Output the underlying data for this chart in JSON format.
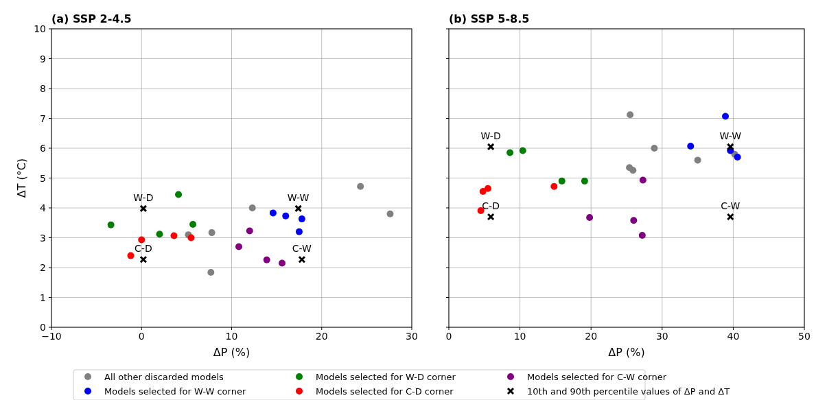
{
  "chart_data": [
    {
      "type": "scatter",
      "title": "(a) SSP 2-4.5",
      "xlabel": "ΔP (%)",
      "ylabel": "ΔT (°C)",
      "xlim": [
        -10,
        30
      ],
      "xticks": [
        {
          "value": -10,
          "label": "−10"
        },
        0,
        10,
        20,
        30
      ],
      "ylim": [
        0,
        10
      ],
      "yticks": [
        0,
        1,
        2,
        3,
        4,
        5,
        6,
        7,
        8,
        9,
        10
      ],
      "grid": true,
      "legend": "bottom",
      "marker": "circle",
      "series": [
        {
          "name": "All other discarded models",
          "color": "#808080",
          "x": [
            24.3,
            27.6,
            12.3,
            7.8,
            5.2,
            7.7
          ],
          "values": [
            4.72,
            3.8,
            4.0,
            3.17,
            3.1,
            1.84
          ]
        },
        {
          "name": "Models selected for W-W corner",
          "color": "#0000ff",
          "x": [
            14.6,
            16.0,
            17.8,
            17.5
          ],
          "values": [
            3.83,
            3.73,
            3.63,
            3.2
          ]
        },
        {
          "name": "Models selected for W-D corner",
          "color": "#008000",
          "x": [
            -3.4,
            4.1,
            5.7,
            2.0
          ],
          "values": [
            3.43,
            4.45,
            3.45,
            3.12
          ]
        },
        {
          "name": "Models selected for C-D corner",
          "color": "#ff0000",
          "x": [
            0.0,
            -1.2,
            3.6,
            5.5
          ],
          "values": [
            2.93,
            2.4,
            3.07,
            3.0
          ]
        },
        {
          "name": "Models selected for C-W corner",
          "color": "#800080",
          "x": [
            12.0,
            10.8,
            13.9,
            15.6
          ],
          "values": [
            3.23,
            2.7,
            2.26,
            2.15
          ]
        },
        {
          "name": "10th and 90th percentile values of ΔP and ΔT",
          "color": "#000000",
          "marker": "cross",
          "x": [
            0.2,
            0.2,
            17.4,
            17.8
          ],
          "values": [
            3.98,
            2.27,
            3.98,
            2.27
          ]
        }
      ],
      "annotations": [
        {
          "text": "W-D",
          "x": 0.2,
          "y": 3.98
        },
        {
          "text": "C-D",
          "x": 0.2,
          "y": 2.27
        },
        {
          "text": "W-W",
          "x": 17.4,
          "y": 3.98
        },
        {
          "text": "C-W",
          "x": 17.8,
          "y": 2.27
        }
      ]
    },
    {
      "type": "scatter",
      "title": "(b) SSP 5-8.5",
      "xlabel": "ΔP (%)",
      "xlim": [
        0,
        50
      ],
      "xticks": [
        0,
        10,
        20,
        30,
        40,
        50
      ],
      "ylim": [
        0,
        10
      ],
      "yticks": [
        0,
        1,
        2,
        3,
        4,
        5,
        6,
        7,
        8,
        9,
        10
      ],
      "tick_labels": "x",
      "grid": true,
      "marker": "circle",
      "series": [
        {
          "color": "#808080",
          "x": [
            25.5,
            28.9,
            25.4,
            25.9,
            35.0,
            40.2
          ],
          "values": [
            7.12,
            6.0,
            5.35,
            5.26,
            5.6,
            5.8
          ]
        },
        {
          "color": "#0000ff",
          "x": [
            38.9,
            34.0,
            39.6,
            40.6
          ],
          "values": [
            7.07,
            6.07,
            5.92,
            5.7
          ]
        },
        {
          "color": "#008000",
          "x": [
            8.6,
            10.4,
            15.9,
            19.1
          ],
          "values": [
            5.85,
            5.92,
            4.9,
            4.9
          ]
        },
        {
          "color": "#ff0000",
          "x": [
            4.8,
            5.5,
            14.8,
            4.5
          ],
          "values": [
            4.55,
            4.65,
            4.72,
            3.91
          ]
        },
        {
          "color": "#800080",
          "x": [
            27.3,
            19.8,
            26.0,
            27.2
          ],
          "values": [
            4.93,
            3.68,
            3.58,
            3.08
          ]
        },
        {
          "color": "#000000",
          "marker": "cross",
          "x": [
            5.9,
            5.9,
            39.6,
            39.6
          ],
          "values": [
            6.05,
            3.7,
            6.05,
            3.7
          ]
        }
      ],
      "annotations": [
        {
          "text": "W-D",
          "x": 5.9,
          "y": 6.05
        },
        {
          "text": "C-D",
          "x": 5.9,
          "y": 3.7
        },
        {
          "text": "W-W",
          "x": 39.6,
          "y": 6.05
        },
        {
          "text": "C-W",
          "x": 39.6,
          "y": 3.7
        }
      ]
    }
  ]
}
